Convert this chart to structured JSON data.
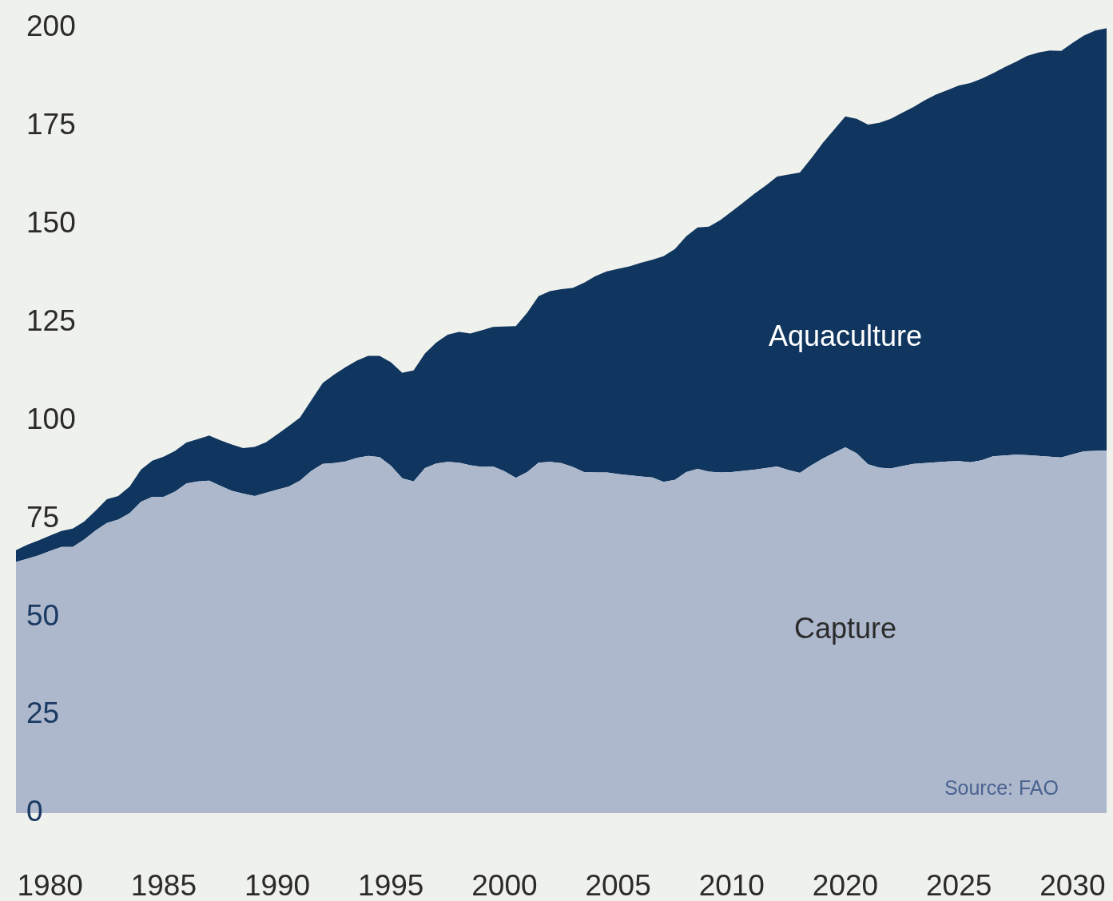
{
  "chart_data": {
    "type": "area",
    "stacked": true,
    "categories": [
      null,
      null,
      null,
      "1980",
      null,
      null,
      null,
      null,
      null,
      null,
      null,
      null,
      null,
      "1985",
      null,
      null,
      null,
      null,
      null,
      null,
      null,
      null,
      null,
      "1990",
      null,
      null,
      null,
      null,
      null,
      null,
      null,
      null,
      null,
      "1995",
      null,
      null,
      null,
      null,
      null,
      null,
      null,
      null,
      null,
      "2000",
      null,
      null,
      null,
      null,
      null,
      null,
      null,
      null,
      null,
      "2005",
      null,
      null,
      null,
      null,
      null,
      null,
      null,
      null,
      null,
      "2010",
      null,
      null,
      null,
      null,
      null,
      null,
      null,
      null,
      null,
      "2020",
      null,
      null,
      null,
      null,
      null,
      null,
      null,
      null,
      null,
      "2025",
      null,
      null,
      null,
      null,
      null,
      null,
      null,
      null,
      null,
      "2030",
      null,
      null,
      null
    ],
    "series": [
      {
        "name": "Capture",
        "color": "#adb8cd",
        "values": [
          64.0,
          64.8,
          65.7,
          66.8,
          67.8,
          67.8,
          69.7,
          72.0,
          73.9,
          74.8,
          76.4,
          79.3,
          80.6,
          80.6,
          81.9,
          84.0,
          84.5,
          84.7,
          83.4,
          82.1,
          81.4,
          80.8,
          81.6,
          82.4,
          83.2,
          84.7,
          87.2,
          89.0,
          89.2,
          89.6,
          90.5,
          91.0,
          90.7,
          88.5,
          85.3,
          84.5,
          87.9,
          89.1,
          89.5,
          89.3,
          88.6,
          88.2,
          88.3,
          87.1,
          85.4,
          86.9,
          89.3,
          89.5,
          89.2,
          88.2,
          86.9,
          86.8,
          86.8,
          86.4,
          86.1,
          85.8,
          85.5,
          84.4,
          84.9,
          86.9,
          87.7,
          87.0,
          86.8,
          86.9,
          87.2,
          87.5,
          87.9,
          88.3,
          87.4,
          86.7,
          88.6,
          90.3,
          91.8,
          93.2,
          91.7,
          88.9,
          88.0,
          87.8,
          88.4,
          89.0,
          89.2,
          89.4,
          89.6,
          89.7,
          89.4,
          89.9,
          90.9,
          91.1,
          91.3,
          91.2,
          91.0,
          90.8,
          90.6,
          91.4,
          92.2,
          92.3,
          92.4
        ]
      },
      {
        "name": "Aquaculture",
        "color": "#10365f",
        "values": [
          3.0,
          3.6,
          3.8,
          3.9,
          4.1,
          4.7,
          4.6,
          5.0,
          6.1,
          6.0,
          6.8,
          8.2,
          9.2,
          10.2,
          10.4,
          10.4,
          10.8,
          11.5,
          11.6,
          11.8,
          11.6,
          12.5,
          12.9,
          14.1,
          15.4,
          16.1,
          18.0,
          20.6,
          22.5,
          24.0,
          24.8,
          25.5,
          25.8,
          26.4,
          26.9,
          28.3,
          29.2,
          30.8,
          32.4,
          33.3,
          33.6,
          34.8,
          35.6,
          36.9,
          38.7,
          40.6,
          42.4,
          43.5,
          44.3,
          45.6,
          48.2,
          50.0,
          51.2,
          52.3,
          53.2,
          54.4,
          55.5,
          57.5,
          58.8,
          60.1,
          61.5,
          62.4,
          64.3,
          66.4,
          68.3,
          70.3,
          72.0,
          73.9,
          75.3,
          76.5,
          78.2,
          80.4,
          82.3,
          84.3,
          85.2,
          86.5,
          87.9,
          89.1,
          90.0,
          90.9,
          92.4,
          93.7,
          94.6,
          95.7,
          96.6,
          97.2,
          97.6,
          98.9,
          100.1,
          101.7,
          102.8,
          103.5,
          103.6,
          104.8,
          105.9,
          107.1,
          107.6
        ]
      }
    ],
    "ylim": [
      0,
      200
    ],
    "yticks": [
      0,
      25,
      50,
      75,
      100,
      125,
      150,
      175,
      200
    ],
    "annotations": [
      "Source: FAO"
    ]
  }
}
